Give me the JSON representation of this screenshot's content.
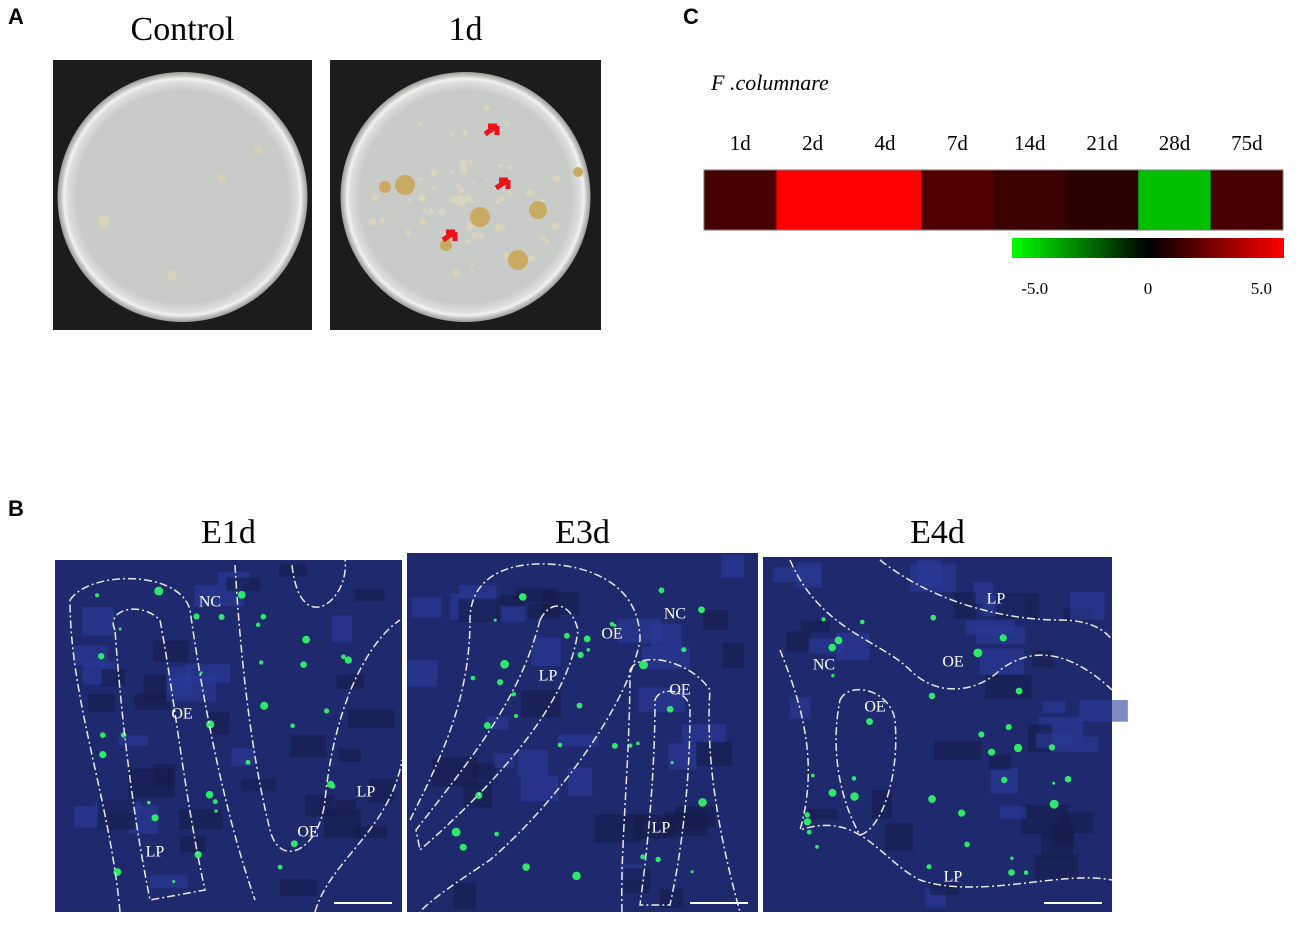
{
  "panels": {
    "a": {
      "letter": "A",
      "images": [
        "Control",
        "1d"
      ]
    },
    "b": {
      "letter": "B",
      "images": [
        {
          "title": "E1d",
          "labels": [
            "NC",
            "OE",
            "LP",
            "OE",
            "LP"
          ]
        },
        {
          "title": "E3d",
          "labels": [
            "NC",
            "OE",
            "LP",
            "OE",
            "LP"
          ]
        },
        {
          "title": "E4d",
          "labels": [
            "LP",
            "OE",
            "NC",
            "OE",
            "LP"
          ]
        }
      ]
    },
    "c": {
      "letter": "C"
    }
  },
  "chart_data": {
    "type": "heatmap",
    "title": "F .columnare",
    "categories": [
      "1d",
      "2d",
      "4d",
      "7d",
      "14d",
      "21d",
      "28d",
      "75d"
    ],
    "values": [
      1.7,
      6,
      6,
      1.9,
      1.4,
      1,
      -4.5,
      1.7
    ],
    "clim": [
      -6,
      6
    ],
    "cticks": [
      {
        "value": -5,
        "label": "-5.0"
      },
      0,
      {
        "value": 5,
        "label": "5.0"
      }
    ],
    "low_color": "#00ff00",
    "mid_color": "#000000",
    "high_color": "#ff0000"
  }
}
